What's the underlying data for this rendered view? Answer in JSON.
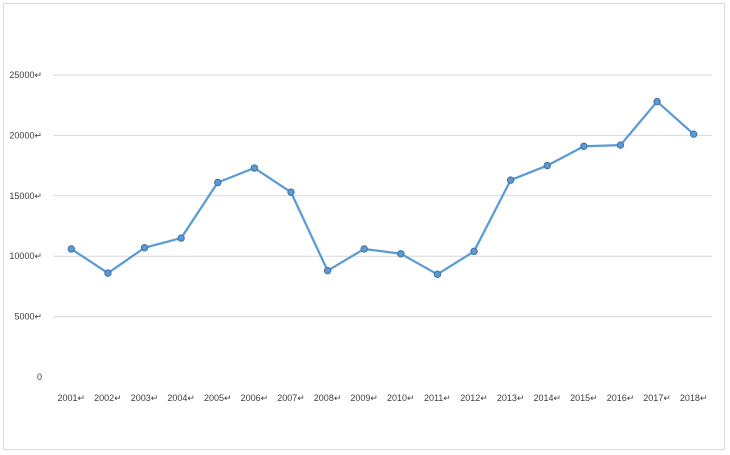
{
  "chart_data": {
    "type": "line",
    "title": "",
    "xlabel": "",
    "ylabel": "",
    "categories": [
      "2001",
      "2002",
      "2003",
      "2004",
      "2005",
      "2006",
      "2007",
      "2008",
      "2009",
      "2010",
      "2011",
      "2012",
      "2013",
      "2014",
      "2015",
      "2016",
      "2017",
      "2018"
    ],
    "x_tick_labels": [
      "2001↵",
      "2002↵",
      "2003↵",
      "2004↵",
      "2005↵",
      "2006↵",
      "2007↵",
      "2008↵",
      "2009↵",
      "2010↵",
      "2011↵",
      "2012↵",
      "2013↵",
      "2014↵",
      "2015↵",
      "2016↵",
      "2017↵",
      "2018↵"
    ],
    "series": [
      {
        "values": [
          10600,
          8600,
          10700,
          11500,
          16100,
          17300,
          15300,
          8800,
          10600,
          10200,
          8500,
          10400,
          16300,
          17500,
          19100,
          19200,
          22800,
          20100
        ],
        "color": "#5b9bd5"
      }
    ],
    "ylim": [
      0,
      25000
    ],
    "y_ticks": [
      0,
      5000,
      10000,
      15000,
      20000,
      25000
    ],
    "y_tick_labels": [
      "0",
      "5000↵",
      "10000↵",
      "15000↵",
      "20000↵",
      "25000↵"
    ],
    "grid": true,
    "legend": "none",
    "gridline_color": "#d9d9d9"
  }
}
